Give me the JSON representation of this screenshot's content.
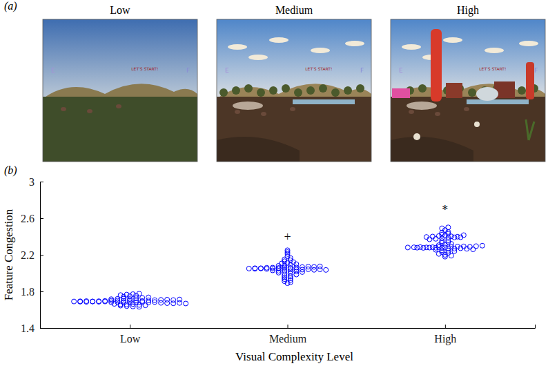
{
  "figure": {
    "panel_labels": [
      "(a)",
      "(b)"
    ],
    "images": [
      {
        "title": "Low",
        "texts": [
          "E",
          "LET'S START!",
          "F"
        ]
      },
      {
        "title": "Medium",
        "texts": [
          "E",
          "LET'S START!",
          "F"
        ]
      },
      {
        "title": "High",
        "texts": [
          "E",
          "LET'S START!",
          "F"
        ]
      }
    ]
  },
  "chart_data": {
    "type": "swarm",
    "x_label": "Visual Complexity Level",
    "y_label": "Feature Congestion",
    "categories": [
      "Low",
      "Medium",
      "High"
    ],
    "values": [
      [
        1.69,
        1.688,
        1.692,
        1.686,
        1.694,
        1.689,
        1.691,
        1.687,
        1.693,
        1.69,
        1.682,
        1.684,
        1.68,
        1.683,
        1.681,
        1.685,
        1.679,
        1.684,
        1.696,
        1.698,
        1.7,
        1.697,
        1.699,
        1.701,
        1.695,
        1.702,
        1.675,
        1.672,
        1.67,
        1.674,
        1.668,
        1.705,
        1.708,
        1.71,
        1.706,
        1.712,
        1.664,
        1.66,
        1.657,
        1.662,
        1.715,
        1.718,
        1.72,
        1.716,
        1.652,
        1.648,
        1.645,
        1.725,
        1.73,
        1.735,
        1.64,
        1.636,
        1.742,
        1.748,
        1.755,
        1.76,
        1.765,
        1.77,
        1.632,
        1.775
      ],
      [
        2.05,
        2.048,
        2.052,
        2.046,
        2.054,
        2.049,
        2.051,
        2.047,
        2.053,
        2.045,
        2.04,
        2.038,
        2.042,
        2.036,
        2.041,
        2.035,
        2.058,
        2.06,
        2.056,
        2.062,
        2.057,
        2.061,
        2.03,
        2.026,
        2.028,
        2.022,
        2.018,
        2.066,
        2.07,
        2.068,
        2.074,
        2.012,
        2.005,
        2.0,
        1.995,
        2.08,
        2.085,
        2.09,
        1.985,
        1.975,
        1.965,
        2.098,
        2.105,
        2.112,
        1.955,
        1.945,
        1.935,
        2.12,
        2.13,
        2.14,
        2.15,
        1.925,
        1.912,
        1.9,
        1.89,
        2.165,
        2.185,
        2.21,
        2.23,
        2.25
      ],
      [
        2.28,
        2.278,
        2.282,
        2.276,
        2.284,
        2.279,
        2.281,
        2.277,
        2.283,
        2.285,
        2.275,
        2.28,
        2.27,
        2.268,
        2.272,
        2.266,
        2.288,
        2.29,
        2.292,
        2.287,
        2.26,
        2.255,
        2.295,
        2.3,
        2.25,
        2.245,
        2.24,
        2.305,
        2.31,
        2.32,
        2.23,
        2.22,
        2.21,
        2.2,
        2.19,
        2.18,
        2.33,
        2.34,
        2.35,
        2.36,
        2.37,
        2.375,
        2.38,
        2.385,
        2.39,
        2.395,
        2.4,
        2.405,
        2.41,
        2.402,
        2.398,
        2.392,
        2.415,
        2.42,
        2.43,
        2.44,
        2.45,
        2.47,
        2.49,
        2.5
      ]
    ],
    "color": "#0000ff",
    "marker": "circle",
    "ylim": [
      1.4,
      3
    ],
    "yticks": [
      1.4,
      1.8,
      2.2,
      2.6,
      3
    ],
    "annotations": [
      {
        "text": "+",
        "x": "Medium",
        "y": 2.4
      },
      {
        "text": "*",
        "x": "High",
        "y": 2.69
      }
    ]
  }
}
